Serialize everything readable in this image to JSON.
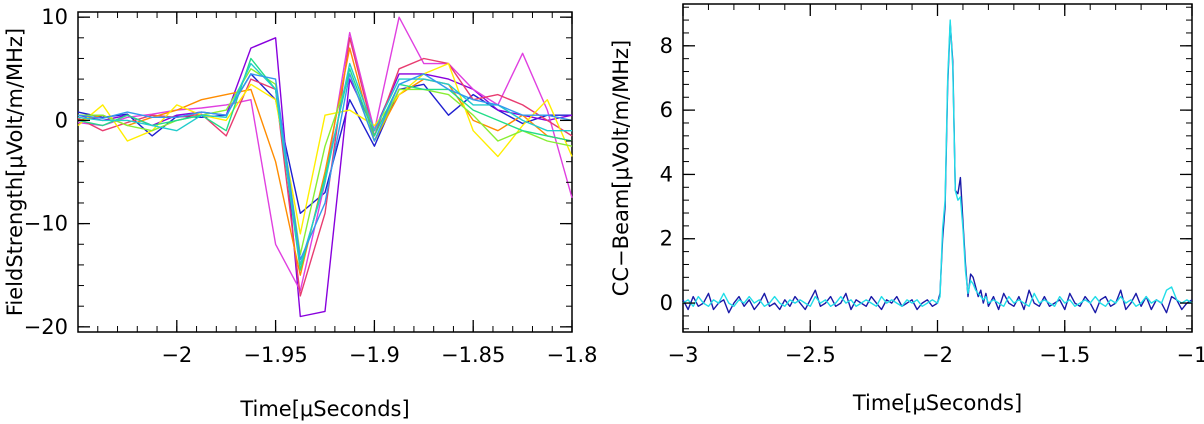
{
  "chart_data": [
    {
      "type": "line",
      "xlabel": "Time[μSeconds]",
      "ylabel": "FieldStrength[μVolt/m/MHz]",
      "xlim": [
        -2.05,
        -1.8
      ],
      "ylim": [
        -20.5,
        10.5
      ],
      "xticks": [
        -2,
        -1.95,
        -1.9,
        -1.85,
        -1.8
      ],
      "xtick_labels": [
        "−2",
        "−1.95",
        "−1.9",
        "−1.85",
        "−1.8"
      ],
      "yticks": [
        -20,
        -10,
        0,
        10
      ],
      "ytick_labels": [
        "−20",
        "−10",
        "0",
        "10"
      ],
      "x": [
        -2.05,
        -2.0375,
        -2.025,
        -2.0125,
        -2.0,
        -1.9875,
        -1.975,
        -1.9625,
        -1.95,
        -1.9375,
        -1.925,
        -1.9125,
        -1.9,
        -1.8875,
        -1.875,
        -1.8625,
        -1.85,
        -1.8375,
        -1.825,
        -1.8125,
        -1.8
      ],
      "series": [
        {
          "color": "#1f1fd0",
          "values": [
            0.8,
            0.3,
            0.6,
            -1.5,
            0.4,
            0.3,
            0.5,
            4.5,
            2.0,
            -9.0,
            -7.0,
            2.0,
            -2.5,
            3.0,
            3.5,
            0.5,
            2.5,
            1.0,
            -0.3,
            0.5,
            0.5
          ]
        },
        {
          "color": "#8800dd",
          "values": [
            0.5,
            0.0,
            0.5,
            -0.5,
            0.5,
            0.8,
            0.5,
            7.0,
            8.0,
            -19.0,
            -18.5,
            4.0,
            -1.0,
            4.5,
            4.5,
            4.0,
            3.0,
            1.0,
            0.5,
            0.0,
            0.5
          ]
        },
        {
          "color": "#e040e0",
          "values": [
            -0.2,
            -0.5,
            0.3,
            0.6,
            1.0,
            1.2,
            1.5,
            2.0,
            -12.0,
            -16.5,
            -6.0,
            8.5,
            -1.0,
            10.0,
            5.5,
            5.5,
            3.0,
            1.5,
            6.5,
            1.0,
            -7.5
          ]
        },
        {
          "color": "#e83c70",
          "values": [
            0.2,
            -1.0,
            -0.2,
            0.5,
            0.3,
            0.6,
            -1.5,
            4.0,
            3.0,
            -17.0,
            -9.0,
            8.0,
            -1.5,
            5.0,
            6.0,
            5.5,
            2.0,
            2.5,
            1.5,
            0.0,
            -1.5
          ]
        },
        {
          "color": "#ff8c00",
          "values": [
            0.0,
            0.5,
            -0.5,
            0.3,
            1.0,
            2.0,
            2.5,
            3.0,
            -4.0,
            -15.0,
            -5.0,
            7.0,
            -2.0,
            2.5,
            4.0,
            3.5,
            0.0,
            -1.0,
            0.5,
            -1.5,
            -2.0
          ]
        },
        {
          "color": "#ffee00",
          "values": [
            -0.5,
            1.5,
            -2.0,
            -1.0,
            1.5,
            0.5,
            0.0,
            3.5,
            2.0,
            -11.0,
            0.5,
            1.0,
            -0.5,
            2.5,
            4.5,
            5.5,
            -1.0,
            -3.5,
            -0.5,
            2.0,
            -3.5
          ]
        },
        {
          "color": "#88ee33",
          "values": [
            0.5,
            0.5,
            -0.5,
            -1.0,
            0.0,
            0.5,
            1.0,
            5.0,
            3.5,
            -13.0,
            -2.5,
            4.5,
            -2.0,
            3.0,
            3.0,
            2.5,
            0.5,
            -2.0,
            -1.0,
            -2.0,
            -2.5
          ]
        },
        {
          "color": "#22dd88",
          "values": [
            0.0,
            -0.5,
            0.5,
            -0.5,
            0.0,
            0.5,
            -1.0,
            6.0,
            3.0,
            -14.5,
            -5.5,
            5.0,
            -1.5,
            3.5,
            3.0,
            3.0,
            1.0,
            0.0,
            -1.0,
            -1.5,
            -2.0
          ]
        },
        {
          "color": "#22cccc",
          "values": [
            0.3,
            0.0,
            0.0,
            -0.5,
            -1.0,
            0.5,
            0.3,
            5.5,
            3.0,
            -14.0,
            -6.0,
            5.5,
            -1.0,
            4.0,
            4.0,
            3.5,
            1.5,
            1.5,
            0.0,
            -1.0,
            -1.0
          ]
        },
        {
          "color": "#3399ee",
          "values": [
            0.5,
            0.2,
            0.8,
            0.3,
            0.3,
            0.8,
            0.5,
            4.5,
            4.0,
            -13.5,
            -8.0,
            4.5,
            -2.0,
            3.5,
            4.5,
            3.0,
            2.0,
            1.5,
            0.5,
            0.5,
            0.0
          ]
        }
      ]
    },
    {
      "type": "line",
      "xlabel": "Time[μSeconds]",
      "ylabel": "CC−Beam[μVolt/m/MHz]",
      "xlim": [
        -3,
        -1
      ],
      "ylim": [
        -0.9,
        9.3
      ],
      "xticks": [
        -3,
        -2.5,
        -2,
        -1.5,
        -1
      ],
      "xtick_labels": [
        "−3",
        "−2.5",
        "−2",
        "−1.5",
        "−1"
      ],
      "yticks": [
        0,
        2,
        4,
        6,
        8
      ],
      "ytick_labels": [
        "0",
        "2",
        "4",
        "6",
        "8"
      ],
      "series": [
        {
          "color": "#1a1aa8",
          "x": [
            -3.0,
            -2.98,
            -2.96,
            -2.94,
            -2.92,
            -2.9,
            -2.88,
            -2.86,
            -2.84,
            -2.82,
            -2.8,
            -2.78,
            -2.76,
            -2.74,
            -2.72,
            -2.7,
            -2.68,
            -2.66,
            -2.64,
            -2.62,
            -2.6,
            -2.58,
            -2.56,
            -2.54,
            -2.52,
            -2.5,
            -2.48,
            -2.46,
            -2.44,
            -2.42,
            -2.4,
            -2.38,
            -2.36,
            -2.34,
            -2.32,
            -2.3,
            -2.28,
            -2.26,
            -2.24,
            -2.22,
            -2.2,
            -2.18,
            -2.16,
            -2.14,
            -2.12,
            -2.1,
            -2.08,
            -2.06,
            -2.04,
            -2.02,
            -2.0,
            -1.99,
            -1.98,
            -1.97,
            -1.96,
            -1.95,
            -1.94,
            -1.93,
            -1.92,
            -1.91,
            -1.9,
            -1.89,
            -1.88,
            -1.87,
            -1.86,
            -1.85,
            -1.84,
            -1.83,
            -1.82,
            -1.81,
            -1.8,
            -1.78,
            -1.76,
            -1.74,
            -1.72,
            -1.7,
            -1.68,
            -1.66,
            -1.64,
            -1.62,
            -1.6,
            -1.58,
            -1.56,
            -1.54,
            -1.52,
            -1.5,
            -1.48,
            -1.46,
            -1.44,
            -1.42,
            -1.4,
            -1.38,
            -1.36,
            -1.34,
            -1.32,
            -1.3,
            -1.28,
            -1.26,
            -1.24,
            -1.22,
            -1.2,
            -1.18,
            -1.16,
            -1.14,
            -1.12,
            -1.1,
            -1.08,
            -1.06,
            -1.04,
            -1.02,
            -1.0
          ],
          "values": [
            0.1,
            -0.2,
            0.2,
            -0.1,
            0.0,
            0.3,
            -0.2,
            0.0,
            0.1,
            -0.3,
            0.0,
            0.2,
            -0.1,
            0.1,
            -0.2,
            0.0,
            0.3,
            -0.1,
            0.0,
            -0.2,
            0.1,
            -0.1,
            0.2,
            0.0,
            -0.2,
            0.1,
            0.4,
            -0.1,
            0.0,
            0.2,
            -0.1,
            0.0,
            0.3,
            -0.2,
            0.1,
            0.0,
            -0.1,
            0.2,
            0.0,
            -0.2,
            0.1,
            0.0,
            0.2,
            -0.1,
            0.0,
            0.1,
            -0.2,
            0.0,
            0.1,
            -0.1,
            0.0,
            0.3,
            2.0,
            3.0,
            6.8,
            8.7,
            7.5,
            3.5,
            3.4,
            3.9,
            2.5,
            1.2,
            0.2,
            0.9,
            0.8,
            0.5,
            0.2,
            0.4,
            0.0,
            0.3,
            -0.1,
            0.2,
            -0.2,
            0.3,
            0.0,
            -0.1,
            0.2,
            -0.2,
            0.4,
            0.0,
            -0.1,
            0.2,
            -0.1,
            0.0,
            0.1,
            -0.2,
            0.3,
            0.0,
            -0.1,
            0.2,
            0.0,
            -0.3,
            0.1,
            0.2,
            -0.1,
            0.0,
            0.4,
            -0.2,
            0.0,
            0.3,
            -0.1,
            0.2,
            -0.2,
            0.1,
            0.0,
            -0.3,
            0.2,
            0.1,
            -0.2,
            0.0,
            0.1
          ]
        },
        {
          "color": "#22dde8",
          "x": [
            -3.0,
            -2.98,
            -2.96,
            -2.94,
            -2.92,
            -2.9,
            -2.88,
            -2.86,
            -2.84,
            -2.82,
            -2.8,
            -2.78,
            -2.76,
            -2.74,
            -2.72,
            -2.7,
            -2.68,
            -2.66,
            -2.64,
            -2.62,
            -2.6,
            -2.58,
            -2.56,
            -2.54,
            -2.52,
            -2.5,
            -2.48,
            -2.46,
            -2.44,
            -2.42,
            -2.4,
            -2.38,
            -2.36,
            -2.34,
            -2.32,
            -2.3,
            -2.28,
            -2.26,
            -2.24,
            -2.22,
            -2.2,
            -2.18,
            -2.16,
            -2.14,
            -2.12,
            -2.1,
            -2.08,
            -2.06,
            -2.04,
            -2.02,
            -2.0,
            -1.99,
            -1.98,
            -1.97,
            -1.96,
            -1.95,
            -1.94,
            -1.93,
            -1.92,
            -1.91,
            -1.9,
            -1.89,
            -1.88,
            -1.87,
            -1.86,
            -1.85,
            -1.84,
            -1.83,
            -1.82,
            -1.81,
            -1.8,
            -1.78,
            -1.76,
            -1.74,
            -1.72,
            -1.7,
            -1.68,
            -1.66,
            -1.64,
            -1.62,
            -1.6,
            -1.58,
            -1.56,
            -1.54,
            -1.52,
            -1.5,
            -1.48,
            -1.46,
            -1.44,
            -1.42,
            -1.4,
            -1.38,
            -1.36,
            -1.34,
            -1.32,
            -1.3,
            -1.28,
            -1.26,
            -1.24,
            -1.22,
            -1.2,
            -1.18,
            -1.16,
            -1.14,
            -1.12,
            -1.1,
            -1.08,
            -1.06,
            -1.04,
            -1.02,
            -1.0
          ],
          "values": [
            0.0,
            0.1,
            -0.1,
            0.2,
            0.0,
            -0.1,
            0.1,
            0.0,
            0.3,
            0.0,
            -0.1,
            0.1,
            0.0,
            0.2,
            0.0,
            0.1,
            -0.1,
            0.0,
            0.2,
            0.0,
            -0.1,
            0.1,
            0.0,
            0.1,
            0.0,
            -0.1,
            0.2,
            0.0,
            0.1,
            -0.1,
            0.0,
            0.2,
            0.0,
            0.1,
            -0.1,
            0.0,
            0.1,
            0.0,
            -0.1,
            0.2,
            0.0,
            0.1,
            0.0,
            -0.1,
            0.1,
            0.0,
            0.1,
            -0.1,
            0.0,
            0.1,
            0.0,
            0.2,
            2.3,
            3.2,
            7.0,
            8.8,
            7.3,
            3.5,
            3.2,
            3.3,
            2.3,
            1.0,
            0.3,
            0.7,
            0.6,
            0.4,
            0.3,
            0.2,
            0.1,
            0.2,
            0.0,
            0.1,
            0.0,
            -0.1,
            0.2,
            0.0,
            0.1,
            0.0,
            -0.1,
            0.3,
            0.0,
            0.1,
            0.0,
            -0.1,
            0.2,
            0.0,
            0.1,
            -0.1,
            0.0,
            0.1,
            0.0,
            0.2,
            0.0,
            -0.1,
            0.1,
            0.0,
            0.2,
            0.0,
            0.1,
            -0.1,
            0.0,
            0.2,
            0.0,
            0.1,
            0.0,
            0.4,
            0.5,
            0.1,
            0.0,
            0.1,
            0.0
          ]
        }
      ]
    }
  ]
}
